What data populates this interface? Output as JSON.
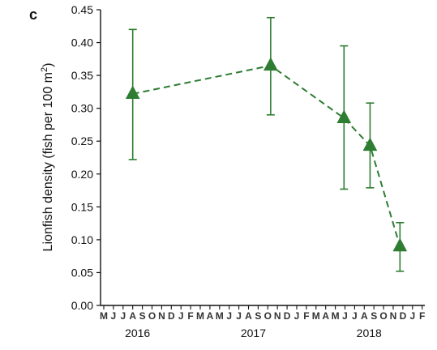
{
  "panel_label": "c",
  "chart_data": {
    "type": "line",
    "ylabel_main": "Lionfish density (fish per 100 m",
    "ylabel_sup": "2",
    "ylabel_close": ")",
    "xlabel": "",
    "ylim": [
      0,
      0.45
    ],
    "yticks": [
      "0.00",
      "0.05",
      "0.10",
      "0.15",
      "0.20",
      "0.25",
      "0.30",
      "0.35",
      "0.40",
      "0.45"
    ],
    "month_labels": [
      "M",
      "J",
      "J",
      "A",
      "S",
      "O",
      "N",
      "D",
      "J",
      "F",
      "M",
      "A",
      "M",
      "J",
      "J",
      "A",
      "S",
      "O",
      "N",
      "D",
      "J",
      "F",
      "M",
      "A",
      "M",
      "J",
      "J",
      "A",
      "S",
      "O",
      "N",
      "D",
      "J",
      "F"
    ],
    "years": [
      {
        "label": "2016",
        "month_index": 3.5
      },
      {
        "label": "2017",
        "month_index": 15.5
      },
      {
        "label": "2018",
        "month_index": 27.5
      }
    ],
    "series": [
      {
        "color": "#2e7d32",
        "marker": "triangle",
        "line_style": "dashed",
        "points": [
          {
            "month_index": 3,
            "x": "Aug 2016",
            "y": 0.322,
            "lower": 0.222,
            "upper": 0.42
          },
          {
            "month_index": 17.3,
            "x": "Oct 2017",
            "y": 0.365,
            "lower": 0.29,
            "upper": 0.438
          },
          {
            "month_index": 24.9,
            "x": "May 2018",
            "y": 0.285,
            "lower": 0.177,
            "upper": 0.395
          },
          {
            "month_index": 27.6,
            "x": "Aug 2018",
            "y": 0.243,
            "lower": 0.179,
            "upper": 0.308
          },
          {
            "month_index": 30.7,
            "x": "Nov 2018",
            "y": 0.09,
            "lower": 0.052,
            "upper": 0.126
          }
        ]
      }
    ],
    "grid": false,
    "legend": "none"
  }
}
